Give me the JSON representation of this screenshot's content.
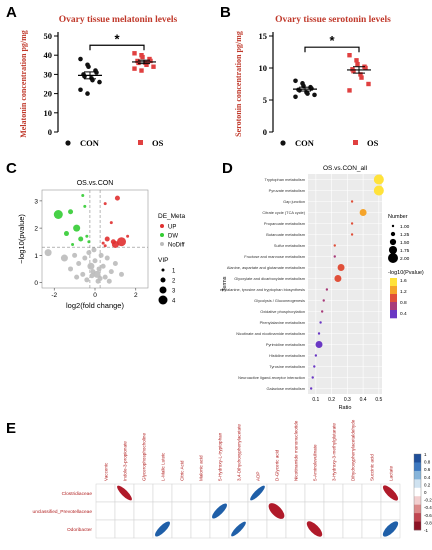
{
  "panels": {
    "A": {
      "letter": "A"
    },
    "B": {
      "letter": "B"
    },
    "C": {
      "letter": "C"
    },
    "D": {
      "letter": "D"
    },
    "E": {
      "letter": "E"
    }
  },
  "chart_data": [
    {
      "id": "A",
      "type": "scatter",
      "title": "Ovary tissue melatonin levels",
      "ylabel": "Melatonin concentration pg/mg",
      "ylim": [
        0,
        50
      ],
      "yticks": [
        "0",
        "10",
        "20",
        "30",
        "40",
        "50"
      ],
      "categories": [
        "CON",
        "OS"
      ],
      "significance": "*",
      "legend": [
        {
          "name": "CON",
          "color": "#111111",
          "marker": "circle"
        },
        {
          "name": "OS",
          "color": "#e04040",
          "marker": "square"
        }
      ],
      "series": [
        {
          "name": "CON",
          "color": "#111111",
          "values": [
            38,
            35,
            34,
            32,
            31,
            30,
            29,
            28,
            27,
            26,
            22,
            20
          ],
          "mean": 29.5,
          "sem": 1.8
        },
        {
          "name": "OS",
          "color": "#e04040",
          "values": [
            41,
            40,
            39,
            38,
            37,
            37,
            36,
            36,
            35,
            34,
            33,
            32
          ],
          "mean": 36.5,
          "sem": 0.9
        }
      ]
    },
    {
      "id": "B",
      "type": "scatter",
      "title": "Ovary tissue serotonin levels",
      "ylabel": "Serotonin concentration pg/mg",
      "ylim": [
        0,
        15
      ],
      "yticks": [
        "0",
        "5",
        "10",
        "15"
      ],
      "categories": [
        "CON",
        "OS"
      ],
      "significance": "*",
      "legend": [
        {
          "name": "CON",
          "color": "#111111",
          "marker": "circle"
        },
        {
          "name": "OS",
          "color": "#e04040",
          "marker": "square"
        }
      ],
      "series": [
        {
          "name": "CON",
          "color": "#111111",
          "values": [
            8.0,
            7.6,
            7.2,
            7.0,
            6.8,
            6.6,
            6.5,
            6.2,
            6.0,
            5.8,
            5.5
          ],
          "mean": 6.7,
          "sem": 0.3
        },
        {
          "name": "OS",
          "color": "#e04040",
          "values": [
            12.0,
            11.2,
            10.6,
            10.2,
            10.0,
            9.8,
            9.5,
            9.0,
            8.5,
            7.5,
            6.5
          ],
          "mean": 9.7,
          "sem": 0.5
        }
      ]
    },
    {
      "id": "C",
      "type": "scatter",
      "title": "OS.vs.CON",
      "xlabel": "log2(fold change)",
      "ylabel": "−log10(pvalue)",
      "xlim": [
        -2.6,
        2.6
      ],
      "ylim": [
        -0.2,
        3.4
      ],
      "xticks": [
        {
          "v": -2,
          "t": "-2"
        },
        {
          "v": 0,
          "t": "0"
        },
        {
          "v": 2,
          "t": "2"
        }
      ],
      "yticks": [
        {
          "v": 0,
          "t": "0"
        },
        {
          "v": 1,
          "t": "1"
        },
        {
          "v": 2,
          "t": "2"
        },
        {
          "v": 3,
          "t": "3"
        }
      ],
      "thresholds": {
        "x": [
          -0.25,
          0.25
        ],
        "y": 1.3
      },
      "legend_groups": {
        "group_title": "DE_Meta",
        "groups": [
          {
            "name": "UP",
            "color": "#e03030"
          },
          {
            "name": "DW",
            "color": "#33cc33"
          },
          {
            "name": "NoDiff",
            "color": "#bbbbbb"
          }
        ],
        "size_title": "VIP",
        "sizes": [
          {
            "label": "1",
            "r": 1.5
          },
          {
            "label": "2",
            "r": 2.5
          },
          {
            "label": "3",
            "r": 3.5
          },
          {
            "label": "4",
            "r": 4.5
          }
        ]
      },
      "points": [
        {
          "x": 1.1,
          "y": 3.1,
          "g": "UP",
          "s": 2
        },
        {
          "x": 0.5,
          "y": 2.9,
          "g": "UP",
          "s": 1
        },
        {
          "x": 0.8,
          "y": 2.2,
          "g": "UP",
          "s": 1
        },
        {
          "x": 1.3,
          "y": 1.5,
          "g": "UP",
          "s": 4
        },
        {
          "x": 1.0,
          "y": 1.4,
          "g": "UP",
          "s": 3
        },
        {
          "x": 0.9,
          "y": 1.5,
          "g": "UP",
          "s": 2
        },
        {
          "x": 0.6,
          "y": 1.6,
          "g": "UP",
          "s": 2
        },
        {
          "x": 0.5,
          "y": 1.35,
          "g": "UP",
          "s": 1
        },
        {
          "x": 0.4,
          "y": 1.45,
          "g": "UP",
          "s": 1
        },
        {
          "x": 1.6,
          "y": 1.7,
          "g": "UP",
          "s": 1
        },
        {
          "x": -0.6,
          "y": 3.2,
          "g": "DW",
          "s": 1
        },
        {
          "x": -1.8,
          "y": 2.5,
          "g": "DW",
          "s": 4
        },
        {
          "x": -1.2,
          "y": 2.6,
          "g": "DW",
          "s": 2
        },
        {
          "x": -0.5,
          "y": 2.8,
          "g": "DW",
          "s": 1
        },
        {
          "x": -0.9,
          "y": 2.0,
          "g": "DW",
          "s": 3
        },
        {
          "x": -1.4,
          "y": 1.8,
          "g": "DW",
          "s": 2
        },
        {
          "x": -0.7,
          "y": 1.6,
          "g": "DW",
          "s": 2
        },
        {
          "x": -0.4,
          "y": 1.7,
          "g": "DW",
          "s": 1
        },
        {
          "x": -1.1,
          "y": 1.4,
          "g": "DW",
          "s": 1
        },
        {
          "x": -0.3,
          "y": 1.5,
          "g": "DW",
          "s": 1
        },
        {
          "x": -2.3,
          "y": 1.1,
          "g": "NoDiff",
          "s": 3
        },
        {
          "x": -1.5,
          "y": 0.9,
          "g": "NoDiff",
          "s": 3
        },
        {
          "x": -1.0,
          "y": 1.0,
          "g": "NoDiff",
          "s": 2
        },
        {
          "x": -0.8,
          "y": 0.7,
          "g": "NoDiff",
          "s": 2
        },
        {
          "x": -0.5,
          "y": 0.9,
          "g": "NoDiff",
          "s": 2
        },
        {
          "x": -0.3,
          "y": 1.1,
          "g": "NoDiff",
          "s": 2
        },
        {
          "x": -0.2,
          "y": 0.6,
          "g": "NoDiff",
          "s": 3
        },
        {
          "x": -0.1,
          "y": 0.4,
          "g": "NoDiff",
          "s": 2
        },
        {
          "x": 0.0,
          "y": 0.8,
          "g": "NoDiff",
          "s": 2
        },
        {
          "x": 0.1,
          "y": 0.3,
          "g": "NoDiff",
          "s": 3
        },
        {
          "x": 0.2,
          "y": 0.5,
          "g": "NoDiff",
          "s": 2
        },
        {
          "x": 0.3,
          "y": 1.0,
          "g": "NoDiff",
          "s": 2
        },
        {
          "x": 0.4,
          "y": 0.6,
          "g": "NoDiff",
          "s": 2
        },
        {
          "x": 0.5,
          "y": 0.2,
          "g": "NoDiff",
          "s": 2
        },
        {
          "x": 0.6,
          "y": 0.9,
          "g": "NoDiff",
          "s": 2
        },
        {
          "x": 0.8,
          "y": 0.4,
          "g": "NoDiff",
          "s": 2
        },
        {
          "x": 1.0,
          "y": 0.7,
          "g": "NoDiff",
          "s": 2
        },
        {
          "x": 1.3,
          "y": 0.3,
          "g": "NoDiff",
          "s": 2
        },
        {
          "x": -0.6,
          "y": 0.3,
          "g": "NoDiff",
          "s": 2
        },
        {
          "x": -0.4,
          "y": 0.1,
          "g": "NoDiff",
          "s": 2
        },
        {
          "x": 0.15,
          "y": 0.05,
          "g": "NoDiff",
          "s": 2
        },
        {
          "x": -1.2,
          "y": 0.5,
          "g": "NoDiff",
          "s": 2
        },
        {
          "x": -0.05,
          "y": 1.2,
          "g": "NoDiff",
          "s": 2
        },
        {
          "x": 0.25,
          "y": 0.15,
          "g": "NoDiff",
          "s": 2
        },
        {
          "x": -0.15,
          "y": 0.25,
          "g": "NoDiff",
          "s": 2
        },
        {
          "x": 0.7,
          "y": 0.05,
          "g": "NoDiff",
          "s": 2
        },
        {
          "x": -0.9,
          "y": 0.2,
          "g": "NoDiff",
          "s": 2
        }
      ]
    },
    {
      "id": "D",
      "type": "scatter",
      "title": "OS.vs.CON_all",
      "xlabel": "Ratio",
      "ylabel": "Terms",
      "xlim": [
        0.05,
        0.52
      ],
      "xticks": [
        {
          "v": 0.1,
          "t": "0.1"
        },
        {
          "v": 0.2,
          "t": "0.2"
        },
        {
          "v": 0.3,
          "t": "0.3"
        },
        {
          "v": 0.4,
          "t": "0.4"
        },
        {
          "v": 0.5,
          "t": "0.5"
        }
      ],
      "terms": [
        {
          "term": "Tryptophan metabolism",
          "ratio": 0.5,
          "n": 2.0,
          "p": 1.8
        },
        {
          "term": "Pyruvate metabolism",
          "ratio": 0.5,
          "n": 2.0,
          "p": 1.8
        },
        {
          "term": "Gap junction",
          "ratio": 0.33,
          "n": 1.0,
          "p": 1.1
        },
        {
          "term": "Citrate cycle (TCA cycle)",
          "ratio": 0.4,
          "n": 1.6,
          "p": 1.4
        },
        {
          "term": "Propanoate metabolism",
          "ratio": 0.33,
          "n": 1.0,
          "p": 1.1
        },
        {
          "term": "Butanoate metabolism",
          "ratio": 0.33,
          "n": 1.0,
          "p": 1.1
        },
        {
          "term": "Sulfur metabolism",
          "ratio": 0.22,
          "n": 1.0,
          "p": 1.1
        },
        {
          "term": "Fructose and mannose metabolism",
          "ratio": 0.22,
          "n": 1.0,
          "p": 1.0
        },
        {
          "term": "Alanine, aspartate and glutamate metabolism",
          "ratio": 0.26,
          "n": 1.6,
          "p": 1.2
        },
        {
          "term": "Glyoxylate and dicarboxylate metabolism",
          "ratio": 0.24,
          "n": 1.6,
          "p": 1.1
        },
        {
          "term": "Phenylalanine, tyrosine and tryptophan biosynthesis",
          "ratio": 0.17,
          "n": 1.0,
          "p": 0.9
        },
        {
          "term": "Glycolysis / Gluconeogenesis",
          "ratio": 0.15,
          "n": 1.0,
          "p": 0.9
        },
        {
          "term": "Oxidative phosphorylation",
          "ratio": 0.14,
          "n": 1.0,
          "p": 0.9
        },
        {
          "term": "Phenylalanine metabolism",
          "ratio": 0.13,
          "n": 1.0,
          "p": 0.7
        },
        {
          "term": "Nicotinate and nicotinamide metabolism",
          "ratio": 0.12,
          "n": 1.0,
          "p": 0.7
        },
        {
          "term": "Pyrimidine metabolism",
          "ratio": 0.12,
          "n": 1.6,
          "p": 0.5
        },
        {
          "term": "Histidine metabolism",
          "ratio": 0.1,
          "n": 1.0,
          "p": 0.6
        },
        {
          "term": "Tyrosine metabolism",
          "ratio": 0.09,
          "n": 1.0,
          "p": 0.6
        },
        {
          "term": "Neuroactive ligand-receptor interaction",
          "ratio": 0.08,
          "n": 1.0,
          "p": 0.5
        },
        {
          "term": "Galactose metabolism",
          "ratio": 0.07,
          "n": 1.0,
          "p": 0.5
        }
      ],
      "size_legend": {
        "title": "Number",
        "items": [
          {
            "label": "1.00",
            "n": 1.0
          },
          {
            "label": "1.25",
            "n": 1.25
          },
          {
            "label": "1.50",
            "n": 1.5
          },
          {
            "label": "1.75",
            "n": 1.75
          },
          {
            "label": "2.00",
            "n": 2.0
          }
        ]
      },
      "color_legend": {
        "title": "-log10(Pvalue)",
        "ticks": [
          "1.6",
          "1.2",
          "0.8",
          "0.4"
        ],
        "colors": [
          "#ffe23a",
          "#f5a42a",
          "#e0503a",
          "#a83c7a",
          "#6a38c4"
        ]
      }
    },
    {
      "id": "E",
      "type": "heatmap",
      "columns": [
        "Vaccenic",
        "Indole-3-propionate",
        "Glycerophosphocholine",
        "L-Malic Luteic",
        "Citric Acid",
        "Malonic acid",
        "5-Hydroxy-L-tryptophan",
        "3,4-Dihydroxyphenylacetate",
        "ADP",
        "D-Glyceric acid",
        "Nicotinamide mononucleotide",
        "5-Aminolevulinate",
        "3-Hydroxy-3-methylglutarate",
        "Dihydroxyphenylacetaldehyde",
        "Succinic acid",
        "Lactate"
      ],
      "rows": [
        "Clostridiaceae",
        "unclassified_Prevotellaceae",
        "Odoribacter"
      ],
      "cells": [
        {
          "r": 0,
          "c": 1,
          "v": -0.75
        },
        {
          "r": 0,
          "c": 8,
          "v": 0.8
        },
        {
          "r": 0,
          "c": 15,
          "v": -0.65
        },
        {
          "r": 1,
          "c": 6,
          "v": 0.7
        },
        {
          "r": 1,
          "c": 9,
          "v": -0.45
        },
        {
          "r": 2,
          "c": 3,
          "v": 0.7
        },
        {
          "r": 2,
          "c": 7,
          "v": 0.8
        },
        {
          "r": 2,
          "c": 11,
          "v": -0.55
        },
        {
          "r": 2,
          "c": 15,
          "v": 0.6
        }
      ],
      "colorbar": [
        "1",
        "0.8",
        "0.6",
        "0.4",
        "0.2",
        "0",
        "-0.2",
        "-0.4",
        "-0.6",
        "-0.8",
        "-1"
      ]
    }
  ]
}
